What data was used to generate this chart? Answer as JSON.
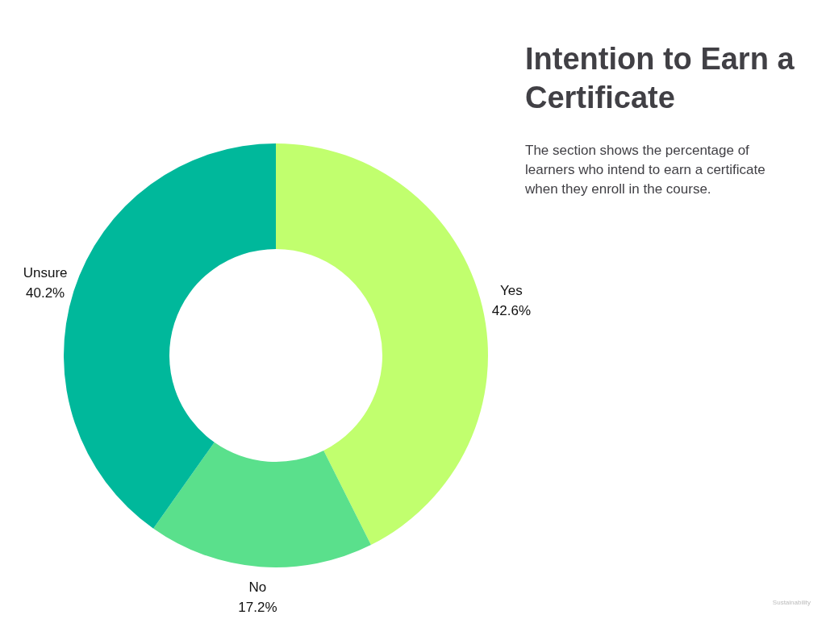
{
  "chart_data": {
    "type": "donut",
    "title": "Intention to Earn a Certificate",
    "subtitle": "The section shows the percentage of learners who intend to earn a certificate when they enroll in the course.",
    "categories": [
      "Yes",
      "No",
      "Unsure"
    ],
    "values": [
      42.6,
      17.2,
      40.2
    ],
    "colors": [
      "#c1ff6e",
      "#5ae08c",
      "#00b89b"
    ],
    "value_labels": [
      "42.6%",
      "17.2%",
      "40.2%"
    ],
    "annotations": [
      "Sustainability"
    ]
  }
}
